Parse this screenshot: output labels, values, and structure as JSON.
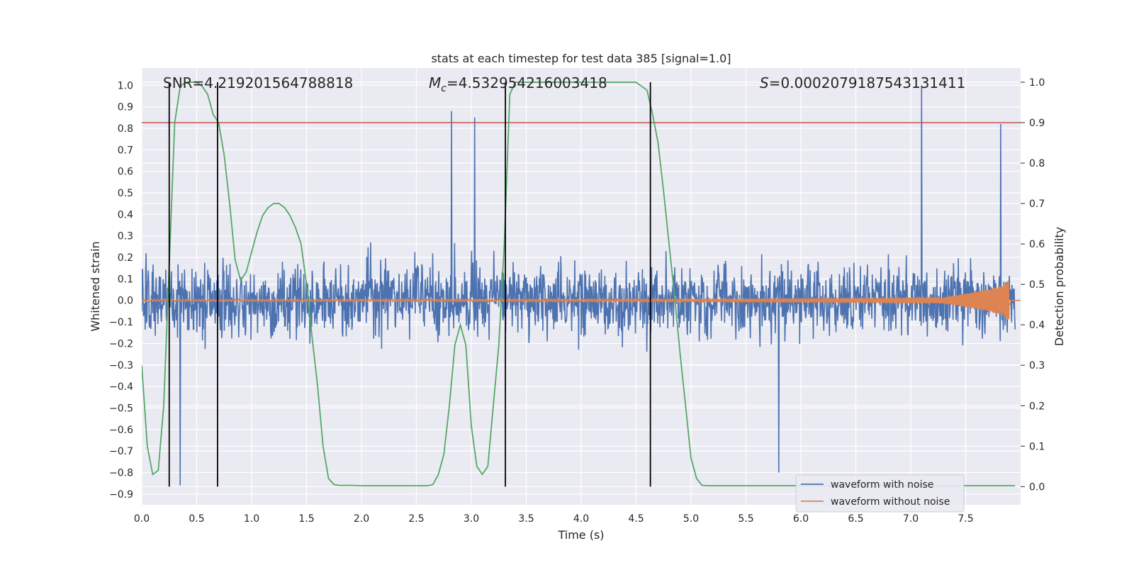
{
  "chart_data": {
    "type": "line",
    "title": "stats at each timestep for test data 385 [signal=1.0]",
    "xlabel": "Time (s)",
    "ylabel_left": "Whitened strain",
    "ylabel_right": "Detection probability",
    "xlim": [
      0,
      8
    ],
    "ylim_left": [
      -0.95,
      1.08
    ],
    "ylim_right": [
      -0.045,
      1.035
    ],
    "x_ticks": [
      0.0,
      0.5,
      1.0,
      1.5,
      2.0,
      2.5,
      3.0,
      3.5,
      4.0,
      4.5,
      5.0,
      5.5,
      6.0,
      6.5,
      7.0,
      7.5
    ],
    "x_tick_labels": [
      "0.0",
      "0.5",
      "1.0",
      "1.5",
      "2.0",
      "2.5",
      "3.0",
      "3.5",
      "4.0",
      "4.5",
      "5.0",
      "5.5",
      "6.0",
      "6.5",
      "7.0",
      "7.5"
    ],
    "y_left_ticks": [
      -0.9,
      -0.8,
      -0.7,
      -0.6,
      -0.5,
      -0.4,
      -0.3,
      -0.2,
      -0.1,
      0.0,
      0.1,
      0.2,
      0.3,
      0.4,
      0.5,
      0.6,
      0.7,
      0.8,
      0.9,
      1.0
    ],
    "y_left_tick_labels": [
      "−0.9",
      "−0.8",
      "−0.7",
      "−0.6",
      "−0.5",
      "−0.4",
      "−0.3",
      "−0.2",
      "−0.1",
      "0.0",
      "0.1",
      "0.2",
      "0.3",
      "0.4",
      "0.5",
      "0.6",
      "0.7",
      "0.8",
      "0.9",
      "1.0"
    ],
    "y_right_ticks": [
      0.0,
      0.1,
      0.2,
      0.3,
      0.4,
      0.5,
      0.6,
      0.7,
      0.8,
      0.9,
      1.0
    ],
    "y_right_tick_labels": [
      "0.0",
      "0.1",
      "0.2",
      "0.3",
      "0.4",
      "0.5",
      "0.6",
      "0.7",
      "0.8",
      "0.9",
      "1.0"
    ],
    "annotations": {
      "snr": "SNR=4.219201564788818",
      "mc_symbol": "M",
      "mc_sub": "c",
      "mc_value": "=4.532954216003418",
      "s_symbol": "S",
      "s_value": "=0.0002079187543131411"
    },
    "threshold_right": 0.9,
    "vertical_lines_x": [
      0.25,
      0.69,
      3.31,
      4.63
    ],
    "series": [
      {
        "name": "waveform with noise",
        "color": "#4c72b0",
        "axis": "left",
        "approx_range": [
          -0.86,
          1.0
        ],
        "peaks": [
          {
            "x": 0.35,
            "y": -0.86
          },
          {
            "x": 2.82,
            "y": 0.88
          },
          {
            "x": 3.03,
            "y": 0.85
          },
          {
            "x": 7.1,
            "y": 1.0
          },
          {
            "x": 7.82,
            "y": 0.82
          },
          {
            "x": 5.8,
            "y": -0.8
          }
        ]
      },
      {
        "name": "waveform without noise",
        "color": "#dd8452",
        "axis": "left",
        "chirp_end_time": 7.9,
        "max_amplitude": 0.09
      },
      {
        "name": "detection probability",
        "color": "#55a868",
        "axis": "right",
        "x": [
          0.0,
          0.05,
          0.1,
          0.15,
          0.2,
          0.25,
          0.3,
          0.35,
          0.4,
          0.45,
          0.5,
          0.55,
          0.6,
          0.65,
          0.7,
          0.75,
          0.8,
          0.85,
          0.9,
          0.95,
          1.0,
          1.05,
          1.1,
          1.15,
          1.2,
          1.25,
          1.3,
          1.35,
          1.4,
          1.45,
          1.5,
          1.55,
          1.6,
          1.65,
          1.7,
          1.75,
          1.8,
          1.9,
          2.0,
          2.2,
          2.4,
          2.6,
          2.65,
          2.7,
          2.75,
          2.8,
          2.85,
          2.9,
          2.95,
          3.0,
          3.05,
          3.1,
          3.15,
          3.2,
          3.25,
          3.3,
          3.35,
          3.4,
          3.45,
          3.5,
          3.6,
          3.8,
          4.0,
          4.2,
          4.4,
          4.5,
          4.55,
          4.6,
          4.65,
          4.7,
          4.75,
          4.8,
          4.85,
          4.9,
          4.95,
          5.0,
          5.05,
          5.1,
          5.15,
          5.2,
          5.5,
          6.0,
          6.5,
          7.0,
          7.5,
          7.95
        ],
        "y": [
          0.3,
          0.1,
          0.03,
          0.04,
          0.2,
          0.55,
          0.9,
          0.99,
          1.0,
          1.0,
          1.0,
          0.99,
          0.97,
          0.92,
          0.9,
          0.82,
          0.7,
          0.56,
          0.51,
          0.53,
          0.58,
          0.63,
          0.67,
          0.69,
          0.7,
          0.7,
          0.69,
          0.67,
          0.64,
          0.6,
          0.5,
          0.37,
          0.25,
          0.1,
          0.02,
          0.005,
          0.003,
          0.003,
          0.002,
          0.002,
          0.002,
          0.002,
          0.005,
          0.03,
          0.08,
          0.2,
          0.35,
          0.4,
          0.35,
          0.15,
          0.05,
          0.03,
          0.05,
          0.2,
          0.35,
          0.6,
          0.97,
          1.0,
          1.0,
          1.0,
          1.0,
          1.0,
          1.0,
          1.0,
          1.0,
          1.0,
          0.99,
          0.98,
          0.92,
          0.85,
          0.73,
          0.6,
          0.47,
          0.33,
          0.2,
          0.07,
          0.02,
          0.003,
          0.002,
          0.002,
          0.002,
          0.002,
          0.002,
          0.002,
          0.002,
          0.002
        ]
      }
    ],
    "red_line_color": "#c44e52",
    "vline_color": "#000000",
    "background": "#eaeaf2",
    "grid": true,
    "legend_position": "lower-right"
  }
}
